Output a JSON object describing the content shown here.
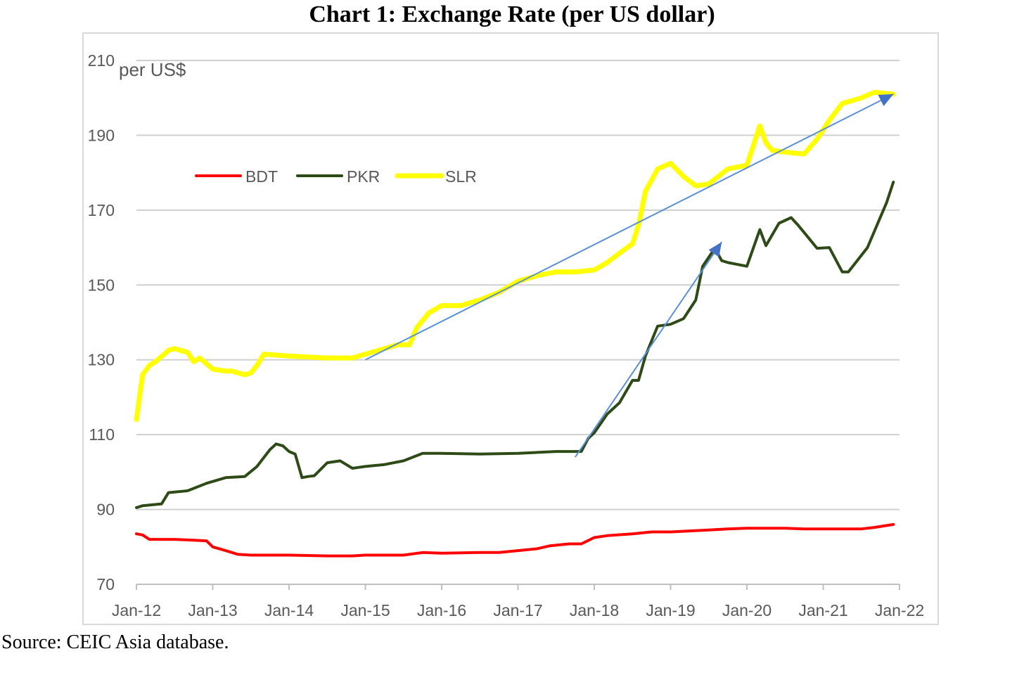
{
  "page": {
    "title": "Chart 1: Exchange Rate (per US dollar)",
    "source": "Source: CEIC Asia database."
  },
  "chart_data": {
    "type": "line",
    "title": "Chart 1: Exchange Rate (per US dollar)",
    "ylabel": "per US$",
    "xlabel": "",
    "ylim": [
      70,
      210
    ],
    "xlim": [
      "Jan-12",
      "Jan-22"
    ],
    "y_ticks": [
      70,
      90,
      110,
      130,
      150,
      170,
      190,
      210
    ],
    "x_ticks": [
      "Jan-12",
      "Jan-13",
      "Jan-14",
      "Jan-15",
      "Jan-16",
      "Jan-17",
      "Jan-18",
      "Jan-19",
      "Jan-20",
      "Jan-21",
      "Jan-22"
    ],
    "grid": "horizontal",
    "legend": "top-left",
    "series": [
      {
        "name": "BDT",
        "color": "#ff0000",
        "x": [
          2012.0,
          2012.08,
          2012.17,
          2012.5,
          2012.75,
          2012.92,
          2013.0,
          2013.17,
          2013.33,
          2013.5,
          2014.0,
          2014.5,
          2014.83,
          2015.0,
          2015.5,
          2015.75,
          2016.0,
          2016.5,
          2016.75,
          2017.0,
          2017.25,
          2017.42,
          2017.67,
          2017.83,
          2018.0,
          2018.17,
          2018.5,
          2018.75,
          2019.0,
          2019.5,
          2019.75,
          2020.0,
          2020.5,
          2020.75,
          2021.0,
          2021.5,
          2021.67,
          2021.92
        ],
        "values": [
          83.5,
          83.2,
          82.0,
          82.0,
          81.8,
          81.6,
          80.0,
          79.0,
          78.0,
          77.8,
          77.8,
          77.6,
          77.6,
          77.8,
          77.8,
          78.5,
          78.3,
          78.5,
          78.5,
          79.0,
          79.5,
          80.3,
          80.8,
          80.8,
          82.5,
          83.0,
          83.5,
          84.0,
          84.0,
          84.5,
          84.8,
          85.0,
          85.0,
          84.8,
          84.8,
          84.8,
          85.2,
          86.0
        ]
      },
      {
        "name": "PKR",
        "color": "#2e4a17",
        "x": [
          2012.0,
          2012.08,
          2012.33,
          2012.42,
          2012.67,
          2012.92,
          2013.17,
          2013.42,
          2013.58,
          2013.75,
          2013.83,
          2013.92,
          2014.0,
          2014.08,
          2014.17,
          2014.25,
          2014.33,
          2014.5,
          2014.67,
          2014.83,
          2015.0,
          2015.25,
          2015.5,
          2015.75,
          2016.0,
          2016.5,
          2017.0,
          2017.5,
          2017.83,
          2017.92,
          2018.0,
          2018.17,
          2018.33,
          2018.5,
          2018.58,
          2018.67,
          2018.83,
          2019.0,
          2019.17,
          2019.33,
          2019.42,
          2019.58,
          2019.67,
          2019.75,
          2020.0,
          2020.17,
          2020.25,
          2020.42,
          2020.58,
          2020.67,
          2020.92,
          2021.08,
          2021.25,
          2021.33,
          2021.58,
          2021.83,
          2021.92
        ],
        "values": [
          90.5,
          91.0,
          91.5,
          94.5,
          95.0,
          97.0,
          98.5,
          98.8,
          101.5,
          106.0,
          107.5,
          107.0,
          105.5,
          104.8,
          98.5,
          98.8,
          99.0,
          102.5,
          103.0,
          101.0,
          101.5,
          102.0,
          103.0,
          105.0,
          105.0,
          104.8,
          105.0,
          105.5,
          105.5,
          109.0,
          110.5,
          115.5,
          118.5,
          124.5,
          124.5,
          131.0,
          139.0,
          139.5,
          141.0,
          146.0,
          155.0,
          159.8,
          156.5,
          156.0,
          155.0,
          164.8,
          160.5,
          166.5,
          168.0,
          166.0,
          159.8,
          160.0,
          153.5,
          153.5,
          160.0,
          172.0,
          177.5
        ]
      },
      {
        "name": "SLR",
        "color": "#ffff00",
        "x": [
          2012.0,
          2012.08,
          2012.17,
          2012.25,
          2012.42,
          2012.5,
          2012.67,
          2012.75,
          2012.83,
          2013.0,
          2013.17,
          2013.25,
          2013.42,
          2013.5,
          2013.58,
          2013.67,
          2014.0,
          2014.5,
          2014.83,
          2015.0,
          2015.17,
          2015.42,
          2015.58,
          2015.67,
          2015.83,
          2016.0,
          2016.25,
          2016.5,
          2016.75,
          2017.0,
          2017.25,
          2017.5,
          2017.75,
          2018.0,
          2018.17,
          2018.33,
          2018.5,
          2018.58,
          2018.67,
          2018.83,
          2019.0,
          2019.17,
          2019.33,
          2019.5,
          2019.75,
          2020.0,
          2020.17,
          2020.25,
          2020.33,
          2020.5,
          2020.75,
          2020.92,
          2021.08,
          2021.25,
          2021.5,
          2021.67,
          2021.92
        ],
        "values": [
          114.0,
          126.0,
          128.5,
          129.5,
          132.5,
          133.0,
          132.0,
          129.5,
          130.5,
          127.5,
          127.0,
          127.0,
          126.0,
          126.5,
          128.5,
          131.5,
          131.0,
          130.5,
          130.5,
          131.5,
          132.5,
          134.0,
          134.0,
          138.5,
          142.5,
          144.5,
          144.5,
          146.0,
          148.0,
          151.0,
          152.5,
          153.5,
          153.5,
          154.0,
          156.0,
          158.5,
          161.0,
          166.0,
          175.0,
          181.0,
          182.5,
          179.0,
          176.5,
          177.0,
          181.0,
          182.0,
          192.5,
          188.0,
          186.0,
          185.5,
          185.0,
          189.0,
          194.0,
          198.5,
          200.0,
          201.5,
          201.0
        ]
      }
    ],
    "annotations": [
      {
        "type": "arrow",
        "from": [
          2015.0,
          130.0
        ],
        "to": [
          2021.92,
          201.0
        ]
      },
      {
        "type": "arrow",
        "from": [
          2017.75,
          104.0
        ],
        "to": [
          2019.67,
          161.5
        ]
      }
    ]
  }
}
